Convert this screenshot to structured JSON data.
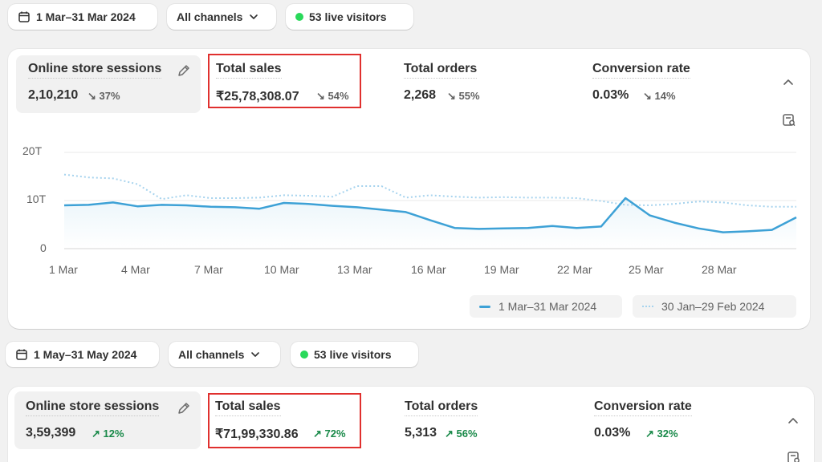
{
  "top": {
    "date_range": "1 Mar–31 Mar 2024",
    "channels": "All channels",
    "live": "53 live visitors",
    "metrics": [
      {
        "title": "Online store sessions",
        "value": "2,10,210",
        "change": "37%",
        "dir": "down"
      },
      {
        "title": "Total sales",
        "value": "₹25,78,308.07",
        "change": "54%",
        "dir": "down"
      },
      {
        "title": "Total orders",
        "value": "2,268",
        "change": "55%",
        "dir": "down"
      },
      {
        "title": "Conversion rate",
        "value": "0.03%",
        "change": "14%",
        "dir": "down"
      }
    ],
    "chart": {
      "y_ticks": [
        "20T",
        "10T",
        "0"
      ],
      "x_ticks": [
        "1 Mar",
        "4 Mar",
        "7 Mar",
        "10 Mar",
        "13 Mar",
        "16 Mar",
        "19 Mar",
        "22 Mar",
        "25 Mar",
        "28 Mar"
      ],
      "legend": [
        "1 Mar–31 Mar 2024",
        "30 Jan–29 Feb 2024"
      ],
      "current": [
        9.0,
        9.1,
        9.6,
        8.8,
        9.1,
        9.0,
        8.7,
        8.6,
        8.3,
        9.5,
        9.3,
        8.9,
        8.6,
        8.1,
        7.6,
        5.9,
        4.3,
        4.1,
        4.2,
        4.3,
        4.7,
        4.3,
        4.6,
        10.5,
        6.9,
        5.4,
        4.2,
        3.4,
        3.6,
        3.9,
        6.5
      ],
      "previous": [
        15.4,
        14.8,
        14.6,
        13.4,
        10.3,
        11.1,
        10.5,
        10.5,
        10.6,
        11.1,
        11.0,
        10.8,
        13.0,
        13.0,
        10.6,
        11.1,
        10.8,
        10.6,
        10.7,
        10.6,
        10.6,
        10.5,
        9.9,
        9.1,
        9.0,
        9.3,
        9.8,
        9.6,
        9.0,
        8.7,
        8.7
      ],
      "colors": {
        "current": "#3da1d6",
        "previous": "#a6d3ee"
      }
    }
  },
  "bottom": {
    "date_range": "1 May–31 May 2024",
    "channels": "All channels",
    "live": "53 live visitors",
    "metrics": [
      {
        "title": "Online store sessions",
        "value": "3,59,399",
        "change": "12%",
        "dir": "up"
      },
      {
        "title": "Total sales",
        "value": "₹71,99,330.86",
        "change": "72%",
        "dir": "up"
      },
      {
        "title": "Total orders",
        "value": "5,313",
        "change": "56%",
        "dir": "up"
      },
      {
        "title": "Conversion rate",
        "value": "0.03%",
        "change": "32%",
        "dir": "up"
      }
    ]
  },
  "icons": {
    "calendar": "calendar-icon",
    "chevron": "chevron-down-icon",
    "pencil": "pencil-icon",
    "collapse": "chevron-up-icon",
    "report": "report-icon"
  }
}
